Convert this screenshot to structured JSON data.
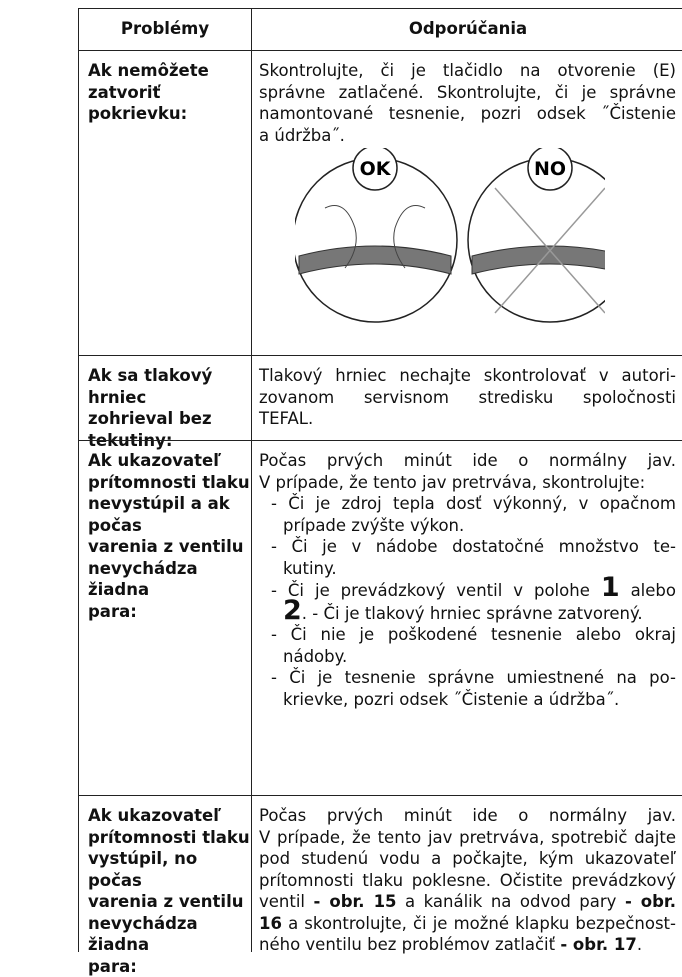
{
  "table": {
    "header": [
      "Problémy",
      "Odporúčania"
    ],
    "rows": [
      {
        "problem": [
          "Ak nemôžete zatvoriť",
          "pokrievku:"
        ],
        "advice": {
          "lines": [
            "Skontrolujte, či je tlačidlo na otvorenie (E)",
            "správne zatlačené. Skontrolujte, či je správne",
            "namontované tesnenie, pozri odsek ˝Čistenie",
            "a údržba˝."
          ]
        },
        "figure": [
          "OK",
          "NO"
        ]
      },
      {
        "problem": [
          "Ak sa tlakový hrniec",
          "zohrieval bez tekutiny:"
        ],
        "advice": {
          "lines": [
            "Tlakový hrniec nechajte skontrolovať v autori-",
            "zovanom servisnom stredisku spoločnosti",
            "TEFAL."
          ]
        }
      },
      {
        "problem": [
          "Ak ukazovateľ",
          "prítomnosti tlaku",
          "nevystúpil a ak počas",
          "varenia z ventilu",
          "nevychádza žiadna",
          "para:"
        ],
        "advice": {
          "lines": [
            "Počas prvých minút ide o normálny jav.",
            "V prípade, že tento jav pretrváva, skontrolujte:"
          ],
          "items": [
            [
              "- Či je zdroj tepla dosť výkonný, v opačnom",
              "prípade zvýšte výkon."
            ],
            [
              "- Či je v nádobe dostatočné množstvo te-",
              "kutiny."
            ],
            [
              [
                "- Či je prevádzkový ventil v polohe ",
                {
                  "big": "1"
                },
                " alebo"
              ],
              [
                {
                  "big": "2"
                },
                ". - Či je tlakový hrniec správne zatvorený."
              ]
            ],
            [
              "- Či nie je poškodené tesnenie alebo okraj",
              "nádoby."
            ],
            [
              "- Či je tesnenie správne umiestnené na po-",
              "krievke, pozri odsek ˝Čistenie a údržba˝."
            ]
          ]
        }
      },
      {
        "problem": [
          "Ak ukazovateľ",
          "prítomnosti tlaku",
          "vystúpil, no počas",
          "varenia z ventilu",
          "nevychádza žiadna",
          "para:"
        ],
        "advice": {
          "lines": [
            "Počas prvých minút ide o normálny jav.",
            "V prípade, že tento jav pretrváva, spotrebič dajte",
            "pod studenú vodu a počkajte, kým ukazovateľ",
            "prítomnosti tlaku poklesne. Očistite prevádzkový",
            [
              "ventil ",
              {
                "bold": "- obr. 15"
              },
              " a kanálik na odvod pary ",
              {
                "bold": "- obr."
              }
            ],
            [
              {
                "bold": "16"
              },
              " a skontrolujte, či je možné klapku bezpečnost-"
            ],
            [
              "ného ventilu bez problémov zatlačiť ",
              {
                "bold": "- obr. 17"
              },
              "."
            ]
          ]
        }
      }
    ]
  }
}
